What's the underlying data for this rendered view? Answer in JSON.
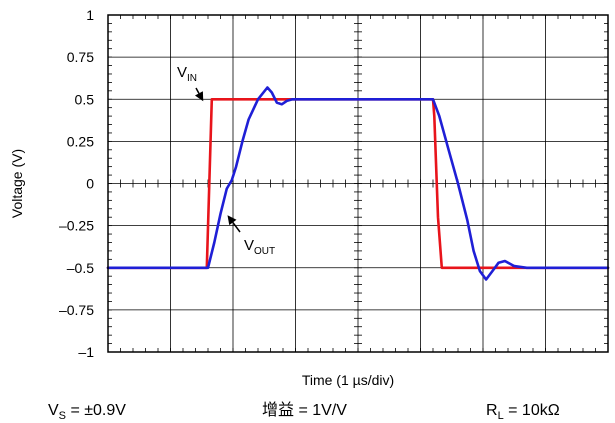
{
  "chart_data": {
    "type": "line",
    "title": "",
    "xlabel": "Time (1 µs/div)",
    "ylabel": "Voltage (V)",
    "xlim": [
      0,
      8
    ],
    "ylim": [
      -1,
      1
    ],
    "x_divisions": 8,
    "y_ticks": [
      "1",
      "0.75",
      "0.5",
      "0.25",
      "0",
      "–0.25",
      "–0.5",
      "–0.75",
      "–1"
    ],
    "y_tick_values": [
      1,
      0.75,
      0.5,
      0.25,
      0,
      -0.25,
      -0.5,
      -0.75,
      -1
    ],
    "grid": true,
    "series": [
      {
        "name": "VIN",
        "color": "#e8141b",
        "x": [
          0,
          1.58,
          1.62,
          1.66,
          3.2,
          5.2,
          5.22,
          5.28,
          5.34,
          8
        ],
        "y": [
          -0.5,
          -0.5,
          0.0,
          0.5,
          0.5,
          0.5,
          0.4,
          -0.2,
          -0.5,
          -0.5
        ]
      },
      {
        "name": "VOUT",
        "color": "#1f1fd6",
        "x": [
          0,
          1.6,
          1.7,
          1.8,
          1.9,
          1.98,
          2.05,
          2.15,
          2.25,
          2.4,
          2.55,
          2.62,
          2.7,
          2.78,
          2.86,
          2.95,
          3.1,
          3.3,
          5.2,
          5.3,
          5.45,
          5.6,
          5.75,
          5.85,
          5.95,
          6.05,
          6.15,
          6.25,
          6.35,
          6.5,
          6.7,
          8
        ],
        "y": [
          -0.5,
          -0.5,
          -0.35,
          -0.18,
          -0.03,
          0.02,
          0.1,
          0.25,
          0.38,
          0.5,
          0.57,
          0.54,
          0.48,
          0.47,
          0.49,
          0.5,
          0.5,
          0.5,
          0.5,
          0.4,
          0.2,
          0.0,
          -0.22,
          -0.4,
          -0.52,
          -0.57,
          -0.52,
          -0.47,
          -0.46,
          -0.49,
          -0.5,
          -0.5
        ]
      }
    ],
    "annotations": [
      {
        "main": "V",
        "sub": "IN",
        "target_series": "VIN",
        "point": [
          1.62,
          0.5
        ]
      },
      {
        "main": "V",
        "sub": "OUT",
        "target_series": "VOUT",
        "point": [
          1.88,
          -0.2
        ]
      }
    ]
  },
  "conditions": {
    "vs_main": "V",
    "vs_sub": "S",
    "vs_value": " = ±0.9V",
    "gain": "增益 = 1V/V",
    "rl_main": "R",
    "rl_sub": "L",
    "rl_value": " = 10kΩ"
  }
}
